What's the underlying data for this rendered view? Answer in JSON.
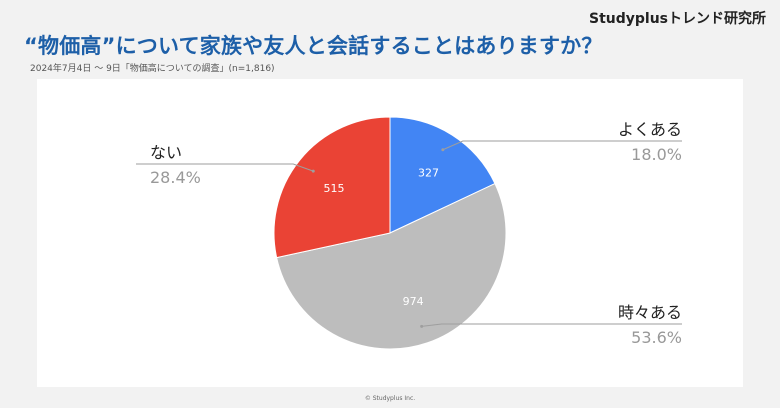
{
  "brand": "Studyplusトレンド研究所",
  "title": "“物価高”について家族や友人と会話することはありますか？",
  "subtitle": "2024年7月4日 〜 9日「物価高についての調査」(n=1,816)",
  "footer": "© Studyplus Inc.",
  "colors": {
    "title": "#1d5fa8",
    "blue": "#4285f4",
    "gray": "#bdbdbd",
    "red": "#ea4335"
  },
  "chart_data": {
    "type": "pie",
    "slices": [
      {
        "label": "よくある",
        "count": "327",
        "percent": "18.0%",
        "value": 18.0,
        "color": "#4285f4"
      },
      {
        "label": "時々ある",
        "count": "974",
        "percent": "53.6%",
        "value": 53.6,
        "color": "#bdbdbd"
      },
      {
        "label": "ない",
        "count": "515",
        "percent": "28.4%",
        "value": 28.4,
        "color": "#ea4335"
      }
    ]
  }
}
